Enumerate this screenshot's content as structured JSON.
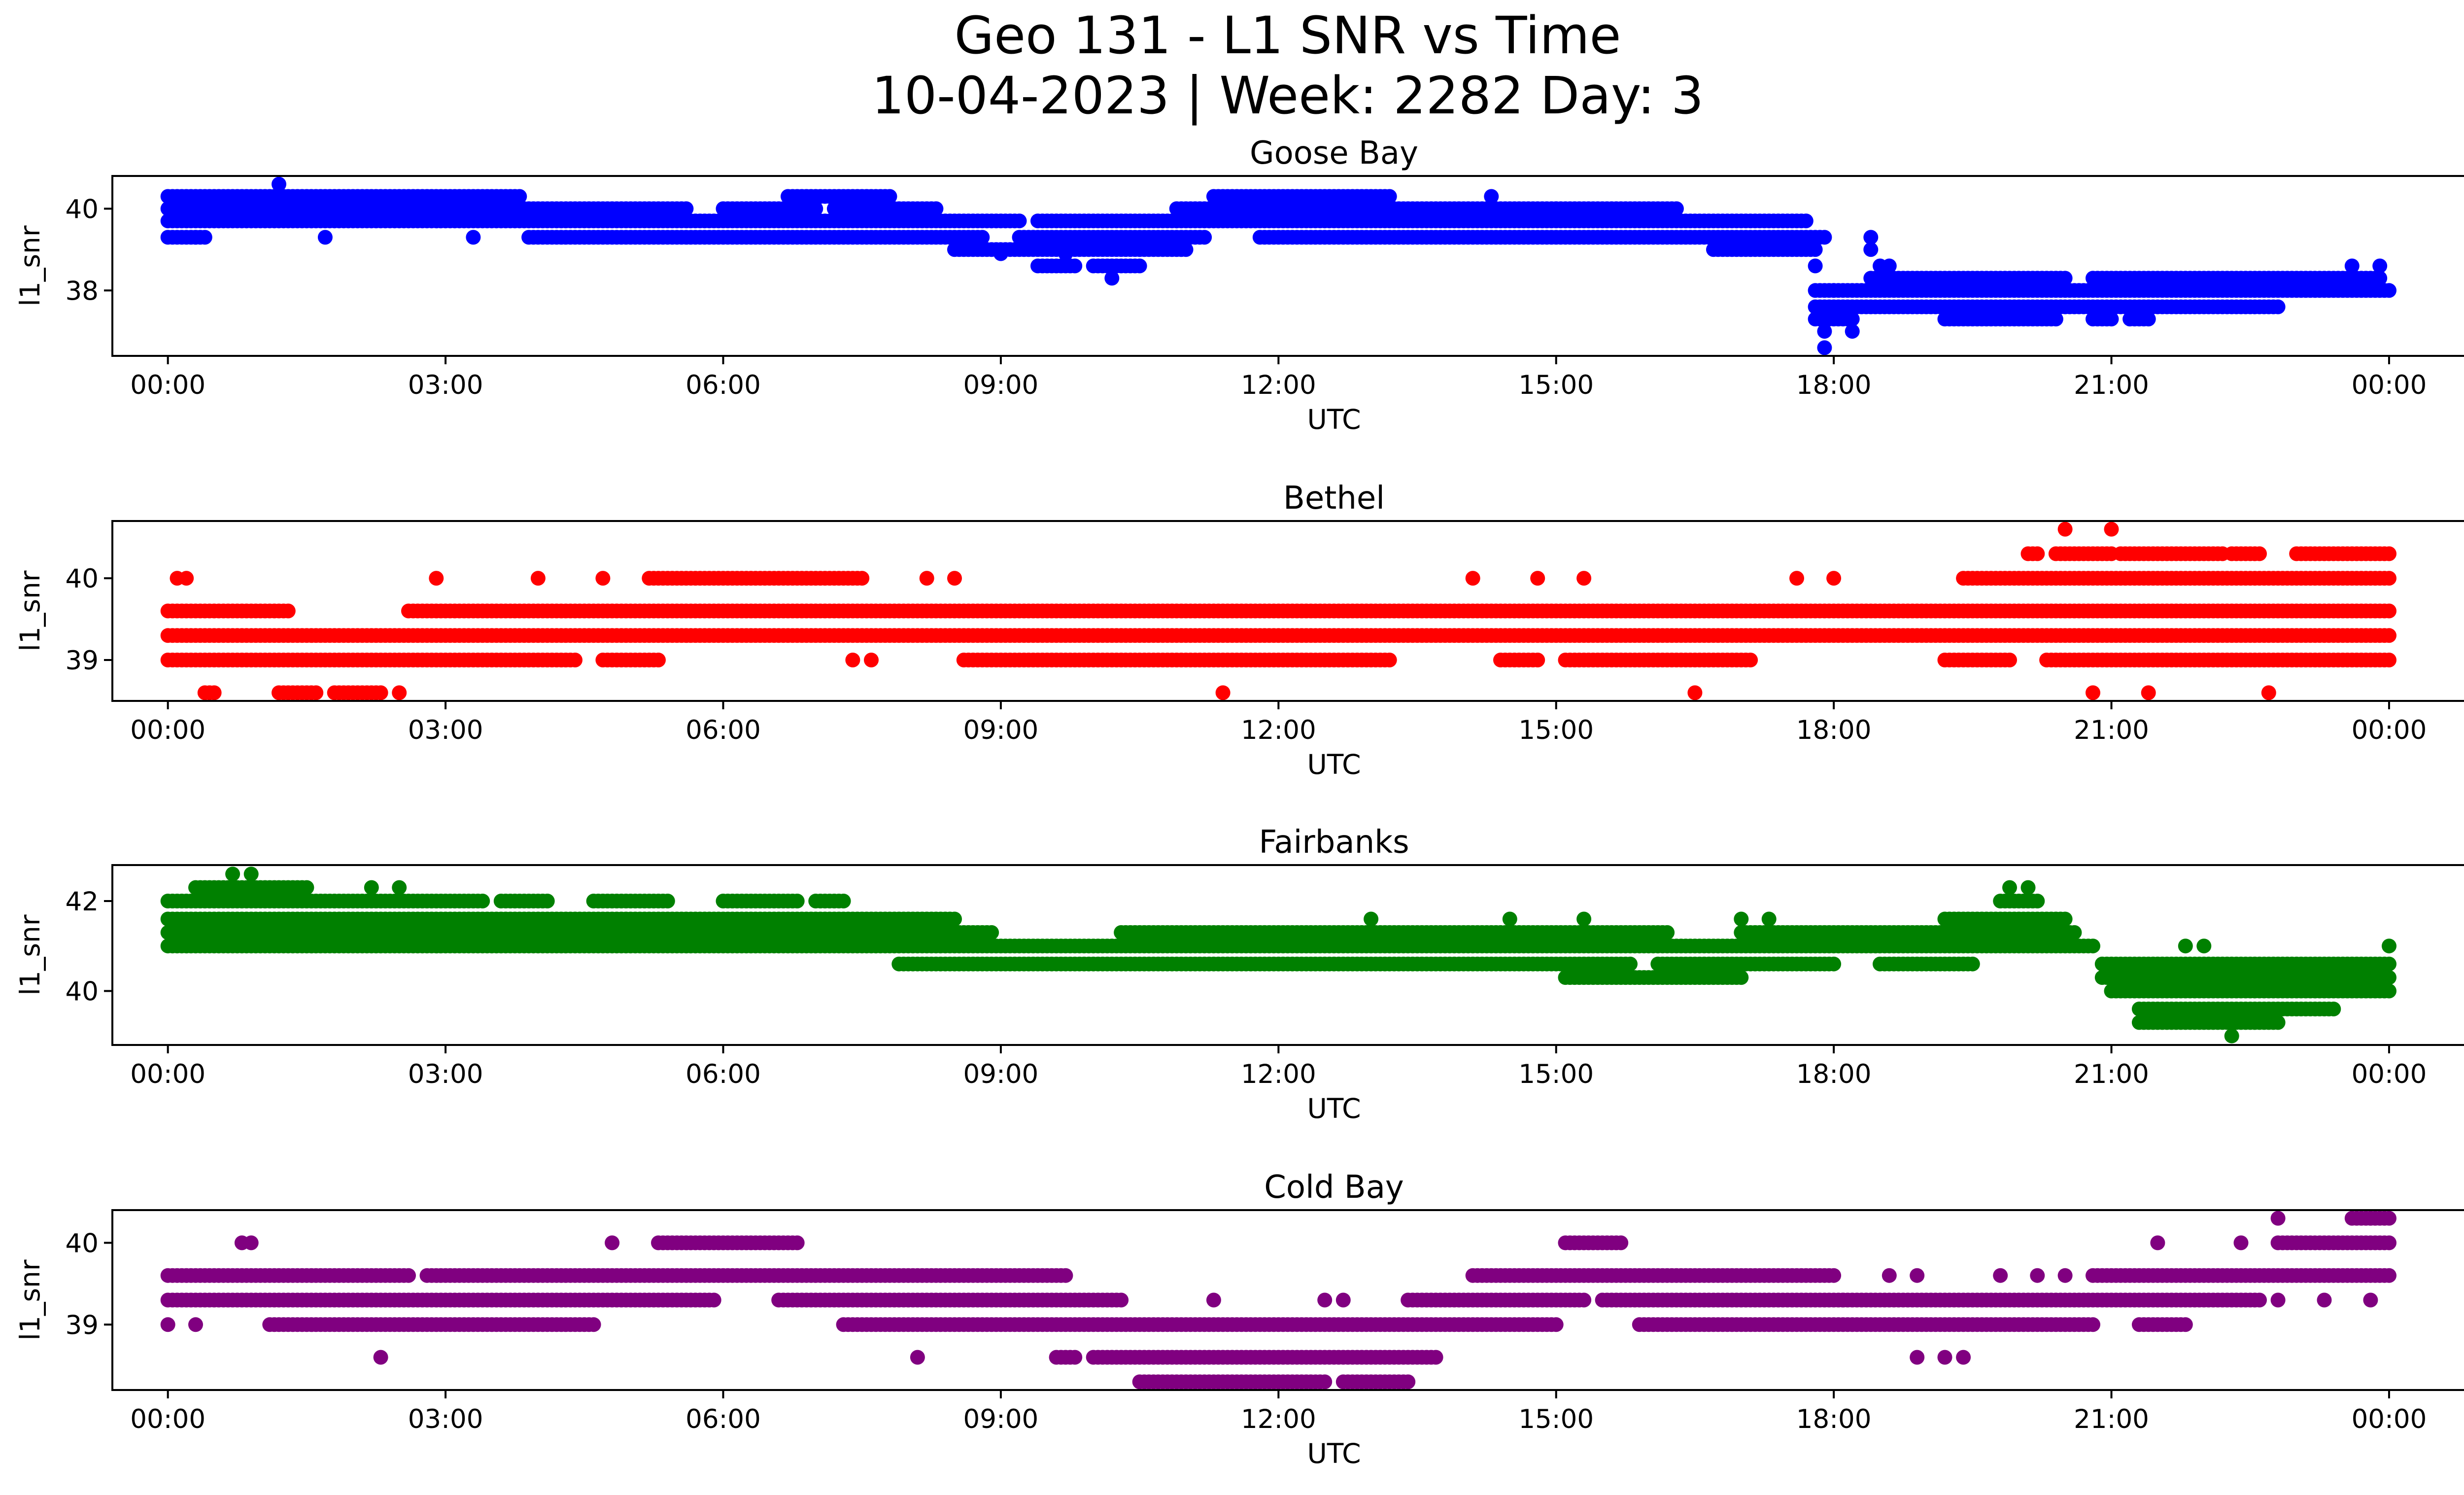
{
  "figure": {
    "title_line1": "Geo 131 - L1 SNR vs Time",
    "title_line2": "10-04-2023 | Week: 2282 Day: 3"
  },
  "chart_data": [
    {
      "type": "scatter",
      "title": "Goose Bay",
      "color": "#0000ff",
      "xlabel": "UTC",
      "ylabel": "l1_snr",
      "x_unit": "hours UTC",
      "xlim": [
        -0.6,
        25.8
      ],
      "ylim": [
        36.4,
        40.8
      ],
      "x_ticks": [
        0,
        3,
        6,
        9,
        12,
        15,
        18,
        21,
        24
      ],
      "x_tick_labels": [
        "00:00",
        "03:00",
        "06:00",
        "09:00",
        "12:00",
        "15:00",
        "18:00",
        "21:00",
        "00:00"
      ],
      "y_ticks": [
        38,
        40
      ],
      "y_tick_labels": [
        "38",
        "40"
      ],
      "levels": [
        {
          "y": 40.3,
          "spans": [
            [
              0,
              3.8
            ],
            [
              6.7,
              7.8
            ],
            [
              11.3,
              13.2
            ]
          ]
        },
        {
          "y": 40.0,
          "spans": [
            [
              0,
              5.6
            ],
            [
              6.0,
              7.0
            ],
            [
              7.2,
              8.3
            ],
            [
              10.9,
              15.0
            ],
            [
              15.0,
              16.3
            ]
          ]
        },
        {
          "y": 39.7,
          "spans": [
            [
              0,
              9.2
            ],
            [
              9.4,
              10.9
            ],
            [
              10.9,
              17.7
            ]
          ]
        },
        {
          "y": 39.3,
          "spans": [
            [
              0,
              0.4
            ],
            [
              3.9,
              8.8
            ],
            [
              9.2,
              11.2
            ],
            [
              11.8,
              17.9
            ]
          ]
        },
        {
          "y": 39.0,
          "spans": [
            [
              8.5,
              10.5
            ],
            [
              10.5,
              11.0
            ],
            [
              16.7,
              17.8
            ]
          ]
        },
        {
          "y": 38.6,
          "spans": [
            [
              9.4,
              9.8
            ],
            [
              10.0,
              10.5
            ]
          ]
        },
        {
          "y": 38.3,
          "spans": [
            [
              18.4,
              20.5
            ],
            [
              20.8,
              23.9
            ]
          ]
        },
        {
          "y": 38.0,
          "spans": [
            [
              17.8,
              24.0
            ]
          ]
        },
        {
          "y": 37.6,
          "spans": [
            [
              17.8,
              22.8
            ]
          ]
        },
        {
          "y": 37.3,
          "spans": [
            [
              17.8,
              18.2
            ],
            [
              19.2,
              20.4
            ],
            [
              20.8,
              21.0
            ],
            [
              21.2,
              21.4
            ]
          ]
        }
      ],
      "points": [
        {
          "x": 1.2,
          "y": 40.6
        },
        {
          "x": 14.3,
          "y": 40.3
        },
        {
          "x": 10.2,
          "y": 38.3
        },
        {
          "x": 18.0,
          "y": 38.0
        },
        {
          "x": 17.8,
          "y": 38.6
        },
        {
          "x": 17.9,
          "y": 36.6
        },
        {
          "x": 17.9,
          "y": 37.0
        },
        {
          "x": 18.2,
          "y": 37.0
        },
        {
          "x": 18.4,
          "y": 39.3
        },
        {
          "x": 18.4,
          "y": 39.0
        },
        {
          "x": 18.5,
          "y": 38.6
        },
        {
          "x": 18.6,
          "y": 38.6
        },
        {
          "x": 23.6,
          "y": 38.6
        },
        {
          "x": 23.9,
          "y": 38.6
        },
        {
          "x": 9.0,
          "y": 38.9
        },
        {
          "x": 9.7,
          "y": 38.9
        },
        {
          "x": 0.3,
          "y": 39.3
        },
        {
          "x": 1.7,
          "y": 39.3
        },
        {
          "x": 3.3,
          "y": 39.3
        }
      ]
    },
    {
      "type": "scatter",
      "title": "Bethel",
      "color": "#ff0000",
      "xlabel": "UTC",
      "ylabel": "l1_snr",
      "x_unit": "hours UTC",
      "xlim": [
        -0.6,
        25.8
      ],
      "ylim": [
        38.5,
        40.7
      ],
      "x_ticks": [
        0,
        3,
        6,
        9,
        12,
        15,
        18,
        21,
        24
      ],
      "x_tick_labels": [
        "00:00",
        "03:00",
        "06:00",
        "09:00",
        "12:00",
        "15:00",
        "18:00",
        "21:00",
        "00:00"
      ],
      "y_ticks": [
        39,
        40
      ],
      "y_tick_labels": [
        "39",
        "40"
      ],
      "levels": [
        {
          "y": 40.3,
          "spans": [
            [
              20.1,
              20.2
            ],
            [
              20.4,
              21.0
            ],
            [
              21.1,
              22.2
            ],
            [
              22.3,
              22.6
            ],
            [
              23.0,
              24.0
            ]
          ]
        },
        {
          "y": 40.0,
          "spans": [
            [
              5.2,
              7.5
            ],
            [
              19.4,
              24.0
            ]
          ]
        },
        {
          "y": 39.6,
          "spans": [
            [
              0,
              1.3
            ],
            [
              2.6,
              24.0
            ]
          ]
        },
        {
          "y": 39.3,
          "spans": [
            [
              0,
              24.0
            ]
          ]
        },
        {
          "y": 39.0,
          "spans": [
            [
              0,
              4.4
            ],
            [
              4.7,
              5.3
            ],
            [
              8.6,
              13.2
            ],
            [
              14.4,
              14.8
            ],
            [
              15.1,
              17.1
            ],
            [
              19.2,
              19.9
            ],
            [
              20.3,
              24.0
            ]
          ]
        },
        {
          "y": 38.6,
          "spans": [
            [
              0.4,
              0.5
            ],
            [
              1.2,
              1.6
            ],
            [
              1.8,
              2.3
            ]
          ]
        }
      ],
      "points": [
        {
          "x": 0.1,
          "y": 40.0
        },
        {
          "x": 0.2,
          "y": 40.0
        },
        {
          "x": 2.9,
          "y": 40.0
        },
        {
          "x": 4.0,
          "y": 40.0
        },
        {
          "x": 4.7,
          "y": 40.0
        },
        {
          "x": 14.1,
          "y": 40.0
        },
        {
          "x": 14.8,
          "y": 40.0
        },
        {
          "x": 15.3,
          "y": 40.0
        },
        {
          "x": 17.6,
          "y": 40.0
        },
        {
          "x": 18.0,
          "y": 40.0
        },
        {
          "x": 8.2,
          "y": 40.0
        },
        {
          "x": 8.5,
          "y": 40.0
        },
        {
          "x": 7.4,
          "y": 39.0
        },
        {
          "x": 7.6,
          "y": 39.0
        },
        {
          "x": 2.5,
          "y": 38.6
        },
        {
          "x": 11.4,
          "y": 38.6
        },
        {
          "x": 16.5,
          "y": 38.6
        },
        {
          "x": 20.8,
          "y": 38.6
        },
        {
          "x": 21.4,
          "y": 38.6
        },
        {
          "x": 22.7,
          "y": 38.6
        },
        {
          "x": 20.5,
          "y": 40.6
        },
        {
          "x": 21.0,
          "y": 40.6
        }
      ]
    },
    {
      "type": "scatter",
      "title": "Fairbanks",
      "color": "#008000",
      "xlabel": "UTC",
      "ylabel": "l1_snr",
      "x_unit": "hours UTC",
      "xlim": [
        -0.6,
        25.8
      ],
      "ylim": [
        38.8,
        42.8
      ],
      "x_ticks": [
        0,
        3,
        6,
        9,
        12,
        15,
        18,
        21,
        24
      ],
      "x_tick_labels": [
        "00:00",
        "03:00",
        "06:00",
        "09:00",
        "12:00",
        "15:00",
        "18:00",
        "21:00",
        "00:00"
      ],
      "y_ticks": [
        40,
        42
      ],
      "y_tick_labels": [
        "40",
        "42"
      ],
      "levels": [
        {
          "y": 42.3,
          "spans": [
            [
              0.3,
              1.5
            ]
          ]
        },
        {
          "y": 42.0,
          "spans": [
            [
              0,
              3.4
            ],
            [
              3.6,
              4.1
            ],
            [
              4.6,
              5.4
            ],
            [
              6.0,
              6.8
            ],
            [
              7.0,
              7.3
            ],
            [
              19.8,
              20.2
            ]
          ]
        },
        {
          "y": 41.6,
          "spans": [
            [
              0,
              8.5
            ],
            [
              19.2,
              20.5
            ]
          ]
        },
        {
          "y": 41.3,
          "spans": [
            [
              0,
              8.9
            ],
            [
              10.3,
              16.2
            ],
            [
              17.0,
              20.6
            ]
          ]
        },
        {
          "y": 41.0,
          "spans": [
            [
              0,
              20.8
            ]
          ]
        },
        {
          "y": 40.6,
          "spans": [
            [
              7.9,
              15.8
            ],
            [
              16.1,
              18.0
            ],
            [
              18.5,
              19.5
            ],
            [
              20.9,
              24.0
            ]
          ]
        },
        {
          "y": 40.3,
          "spans": [
            [
              15.1,
              17.0
            ],
            [
              20.9,
              24.0
            ]
          ]
        },
        {
          "y": 40.0,
          "spans": [
            [
              21.0,
              24.0
            ]
          ]
        },
        {
          "y": 39.6,
          "spans": [
            [
              21.3,
              23.4
            ]
          ]
        },
        {
          "y": 39.3,
          "spans": [
            [
              21.3,
              22.8
            ]
          ]
        }
      ],
      "points": [
        {
          "x": 0.7,
          "y": 42.6
        },
        {
          "x": 0.9,
          "y": 42.6
        },
        {
          "x": 2.2,
          "y": 42.3
        },
        {
          "x": 2.5,
          "y": 42.3
        },
        {
          "x": 19.9,
          "y": 42.3
        },
        {
          "x": 20.1,
          "y": 42.3
        },
        {
          "x": 22.3,
          "y": 39.0
        },
        {
          "x": 21.8,
          "y": 41.0
        },
        {
          "x": 22.0,
          "y": 41.0
        },
        {
          "x": 24.0,
          "y": 41.0
        },
        {
          "x": 13.0,
          "y": 41.6
        },
        {
          "x": 14.5,
          "y": 41.6
        },
        {
          "x": 15.3,
          "y": 41.6
        },
        {
          "x": 17.0,
          "y": 41.6
        },
        {
          "x": 17.3,
          "y": 41.6
        }
      ]
    },
    {
      "type": "scatter",
      "title": "Cold Bay",
      "color": "#800080",
      "xlabel": "UTC",
      "ylabel": "l1_snr",
      "x_unit": "hours UTC",
      "xlim": [
        -0.6,
        25.8
      ],
      "ylim": [
        38.2,
        40.4
      ],
      "x_ticks": [
        0,
        3,
        6,
        9,
        12,
        15,
        18,
        21,
        24
      ],
      "x_tick_labels": [
        "00:00",
        "03:00",
        "06:00",
        "09:00",
        "12:00",
        "15:00",
        "18:00",
        "21:00",
        "00:00"
      ],
      "y_ticks": [
        39,
        40
      ],
      "y_tick_labels": [
        "39",
        "40"
      ],
      "levels": [
        {
          "y": 40.3,
          "spans": [
            [
              23.6,
              24.0
            ]
          ]
        },
        {
          "y": 40.0,
          "spans": [
            [
              5.3,
              6.8
            ],
            [
              15.1,
              15.7
            ],
            [
              22.8,
              24.0
            ]
          ]
        },
        {
          "y": 39.6,
          "spans": [
            [
              0,
              2.6
            ],
            [
              2.8,
              9.7
            ],
            [
              14.1,
              18.0
            ],
            [
              20.8,
              24.0
            ]
          ]
        },
        {
          "y": 39.3,
          "spans": [
            [
              0,
              5.9
            ],
            [
              6.6,
              10.3
            ],
            [
              13.4,
              15.3
            ],
            [
              15.5,
              22.6
            ]
          ]
        },
        {
          "y": 39.0,
          "spans": [
            [
              1.1,
              4.6
            ],
            [
              7.3,
              15.0
            ],
            [
              15.9,
              20.8
            ],
            [
              21.3,
              21.8
            ]
          ]
        },
        {
          "y": 38.6,
          "spans": [
            [
              9.6,
              9.8
            ],
            [
              10.0,
              13.7
            ]
          ]
        },
        {
          "y": 38.3,
          "spans": [
            [
              10.5,
              12.5
            ],
            [
              12.7,
              13.4
            ]
          ]
        }
      ],
      "points": [
        {
          "x": 0.0,
          "y": 39.0
        },
        {
          "x": 0.3,
          "y": 39.0
        },
        {
          "x": 0.8,
          "y": 40.0
        },
        {
          "x": 0.9,
          "y": 40.0
        },
        {
          "x": 4.8,
          "y": 40.0
        },
        {
          "x": 2.3,
          "y": 38.6
        },
        {
          "x": 8.1,
          "y": 38.6
        },
        {
          "x": 11.3,
          "y": 39.3
        },
        {
          "x": 12.5,
          "y": 39.3
        },
        {
          "x": 12.7,
          "y": 39.3
        },
        {
          "x": 18.1,
          "y": 39.3
        },
        {
          "x": 18.9,
          "y": 38.6
        },
        {
          "x": 19.2,
          "y": 38.6
        },
        {
          "x": 19.4,
          "y": 38.6
        },
        {
          "x": 20.2,
          "y": 39.6
        },
        {
          "x": 19.8,
          "y": 39.6
        },
        {
          "x": 20.5,
          "y": 39.6
        },
        {
          "x": 21.5,
          "y": 40.0
        },
        {
          "x": 22.4,
          "y": 40.0
        },
        {
          "x": 22.8,
          "y": 40.3
        },
        {
          "x": 23.8,
          "y": 40.3
        },
        {
          "x": 23.8,
          "y": 39.3
        },
        {
          "x": 22.8,
          "y": 39.3
        },
        {
          "x": 23.3,
          "y": 39.3
        },
        {
          "x": 18.6,
          "y": 39.6
        },
        {
          "x": 18.9,
          "y": 39.6
        }
      ]
    }
  ]
}
